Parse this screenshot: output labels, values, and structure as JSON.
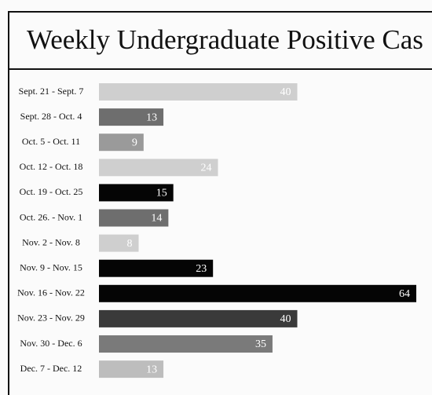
{
  "chart_data": {
    "type": "hbar",
    "title": "Weekly Undergraduate Positive Cas",
    "categories": [
      "Sept. 21 - Sept. 7",
      "Sept. 28 - Oct. 4",
      "Oct. 5 - Oct. 11",
      "Oct. 12 - Oct. 18",
      "Oct. 19 - Oct. 25",
      "Oct. 26. - Nov. 1",
      "Nov. 2 - Nov. 8",
      "Nov. 9 - Nov. 15",
      "Nov. 16 - Nov. 22",
      "Nov. 23 - Nov. 29",
      "Nov. 30 - Dec. 6",
      "Dec. 7 - Dec. 12"
    ],
    "values": [
      40,
      13,
      9,
      24,
      15,
      14,
      8,
      23,
      64,
      40,
      35,
      13
    ],
    "colors": [
      "#cfcfcf",
      "#6e6e6e",
      "#9a9a9a",
      "#cfcfcf",
      "#050505",
      "#6e6e6e",
      "#cfcfcf",
      "#050505",
      "#050505",
      "#3a3a3a",
      "#7a7a7a",
      "#bdbdbd"
    ]
  }
}
